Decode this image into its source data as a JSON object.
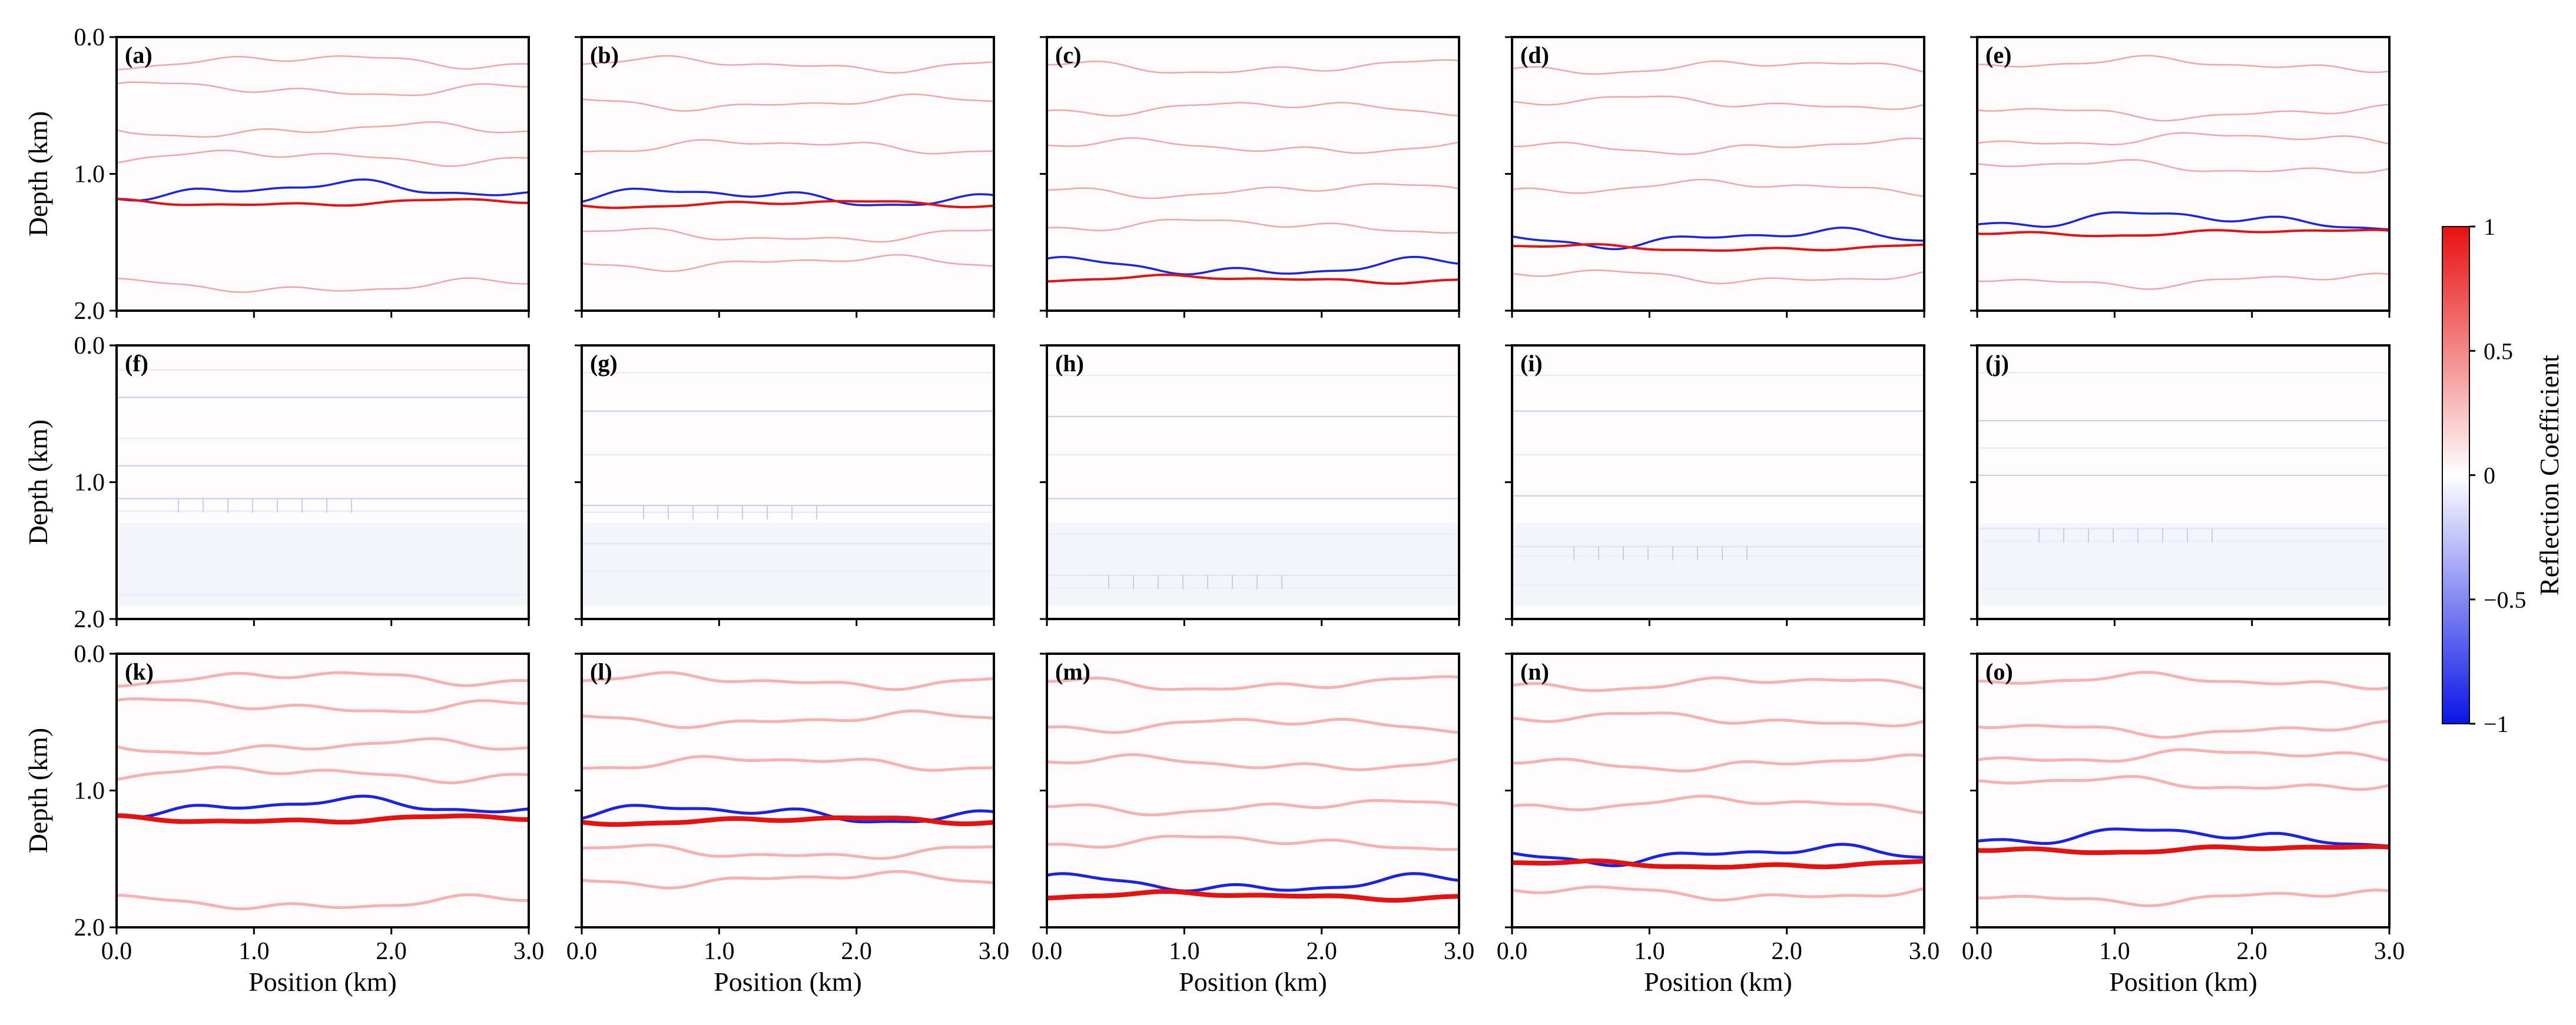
{
  "chart_data": {
    "type": "heatmap",
    "layout": {
      "rows": 3,
      "cols": 5
    },
    "x_range": [
      0.0,
      3.0
    ],
    "y_range": [
      0.0,
      2.0
    ],
    "x_ticks": [
      "0.0",
      "1.0",
      "2.0",
      "3.0"
    ],
    "y_ticks": [
      "0.0",
      "1.0",
      "2.0"
    ],
    "xlabel": "Position (km)",
    "ylabel": "Depth (km)",
    "colorbar": {
      "label": "Reflection Coefficient",
      "range": [
        -1,
        1
      ],
      "ticks": [
        "1",
        "0.5",
        "0",
        "−0.5",
        "−1"
      ],
      "colors": {
        "positive": "#e81010",
        "zero": "#ffffff",
        "negative": "#0a14e6"
      }
    },
    "columns": [
      {
        "faint": [
          0.18,
          0.38,
          0.68,
          0.88,
          1.82
        ],
        "strong_pos": 1.21,
        "strong_neg": 1.12,
        "seed": 1
      },
      {
        "faint": [
          0.2,
          0.48,
          0.8,
          1.45,
          1.65
        ],
        "strong_pos": 1.22,
        "strong_neg": 1.17,
        "seed": 2
      },
      {
        "faint": [
          0.22,
          0.52,
          0.8,
          1.12,
          1.38
        ],
        "strong_pos": 1.77,
        "strong_neg": 1.68,
        "seed": 3
      },
      {
        "faint": [
          0.22,
          0.48,
          0.8,
          1.1,
          1.75
        ],
        "strong_pos": 1.54,
        "strong_neg": 1.47,
        "seed": 4
      },
      {
        "faint": [
          0.2,
          0.55,
          0.75,
          0.95,
          1.78
        ],
        "strong_pos": 1.43,
        "strong_neg": 1.34,
        "seed": 5
      }
    ],
    "panels": [
      {
        "label": "(a)",
        "row": 0,
        "col": 0,
        "kind": "true_model"
      },
      {
        "label": "(b)",
        "row": 0,
        "col": 1,
        "kind": "true_model"
      },
      {
        "label": "(c)",
        "row": 0,
        "col": 2,
        "kind": "true_model"
      },
      {
        "label": "(d)",
        "row": 0,
        "col": 3,
        "kind": "true_model"
      },
      {
        "label": "(e)",
        "row": 0,
        "col": 4,
        "kind": "true_model"
      },
      {
        "label": "(f)",
        "row": 1,
        "col": 0,
        "kind": "residual"
      },
      {
        "label": "(g)",
        "row": 1,
        "col": 1,
        "kind": "residual"
      },
      {
        "label": "(h)",
        "row": 1,
        "col": 2,
        "kind": "residual"
      },
      {
        "label": "(i)",
        "row": 1,
        "col": 3,
        "kind": "residual"
      },
      {
        "label": "(j)",
        "row": 1,
        "col": 4,
        "kind": "residual"
      },
      {
        "label": "(k)",
        "row": 2,
        "col": 0,
        "kind": "inversion"
      },
      {
        "label": "(l)",
        "row": 2,
        "col": 1,
        "kind": "inversion"
      },
      {
        "label": "(m)",
        "row": 2,
        "col": 2,
        "kind": "inversion"
      },
      {
        "label": "(n)",
        "row": 2,
        "col": 3,
        "kind": "inversion"
      },
      {
        "label": "(o)",
        "row": 2,
        "col": 4,
        "kind": "inversion"
      }
    ]
  }
}
